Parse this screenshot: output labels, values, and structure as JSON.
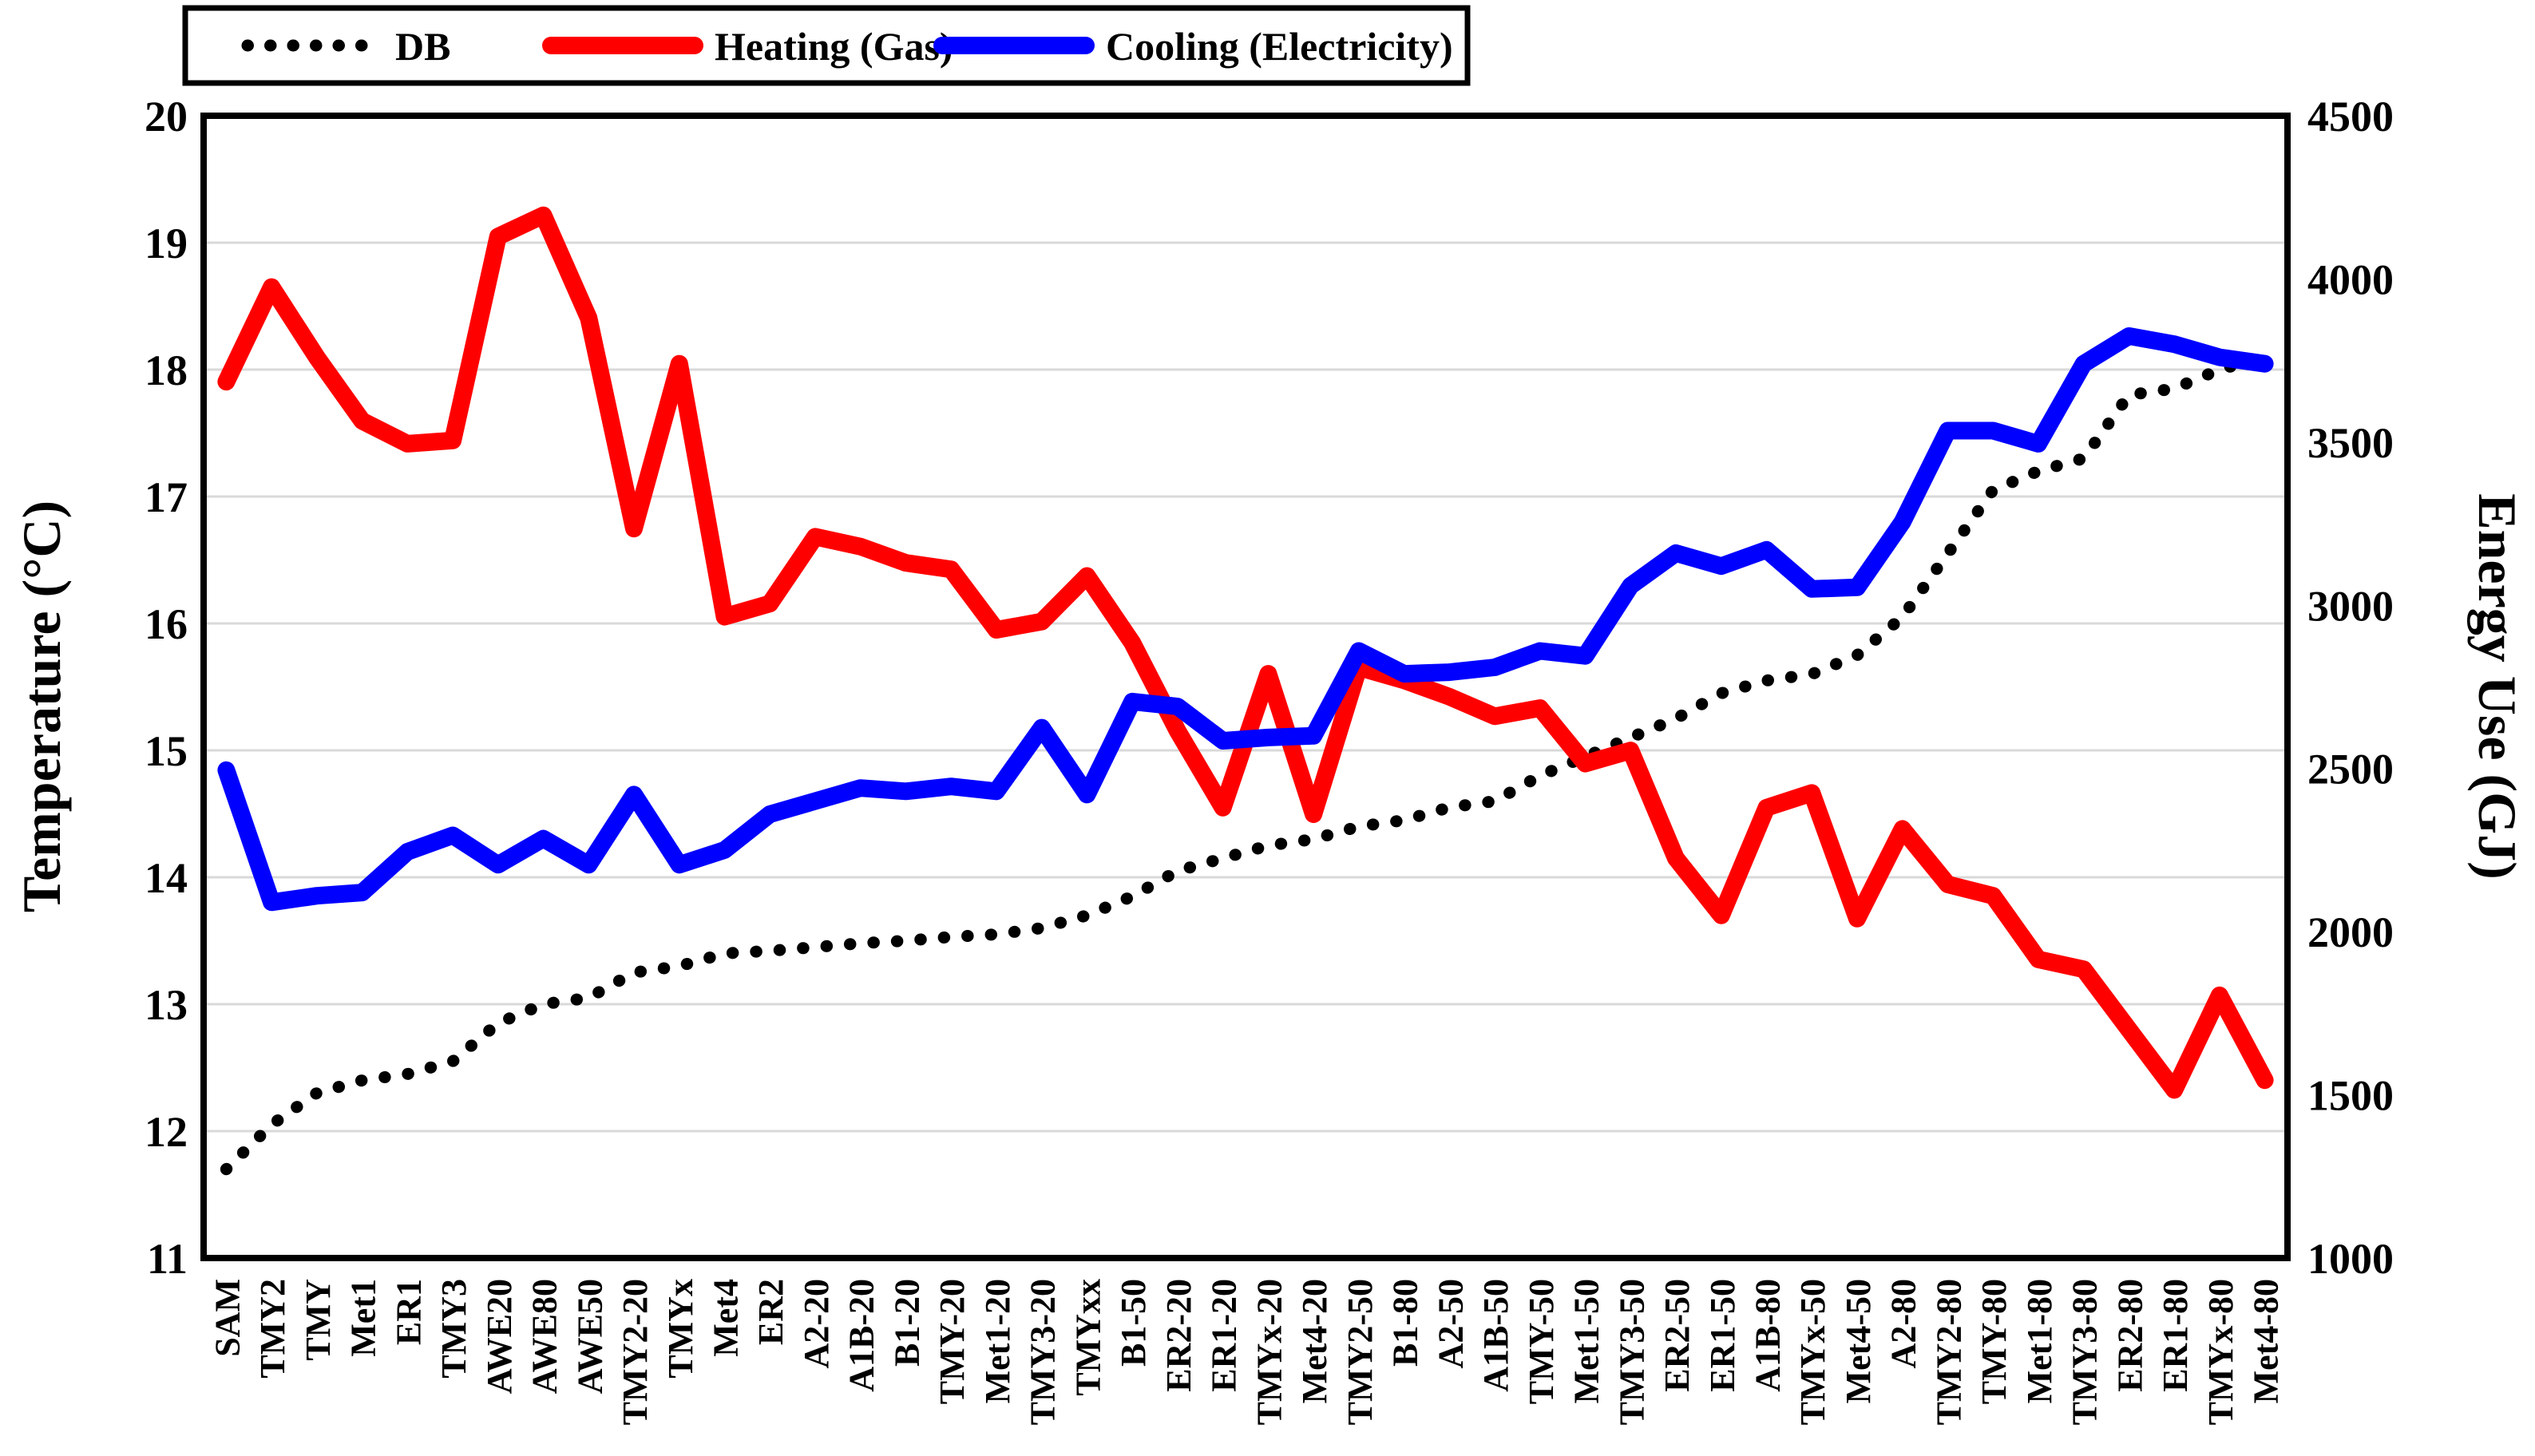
{
  "chart_data": {
    "type": "line",
    "title": "",
    "categories": [
      "SAM",
      "TMY2",
      "TMY",
      "Met1",
      "ER1",
      "TMY3",
      "AWE20",
      "AWE80",
      "AWE50",
      "TMY2-20",
      "TMYx",
      "Met4",
      "ER2",
      "A2-20",
      "A1B-20",
      "B1-20",
      "TMY-20",
      "Met1-20",
      "TMY3-20",
      "TMYxx",
      "B1-50",
      "ER2-20",
      "ER1-20",
      "TMYx-20",
      "Met4-20",
      "TMY2-50",
      "B1-80",
      "A2-50",
      "A1B-50",
      "TMY-50",
      "Met1-50",
      "TMY3-50",
      "ER2-50",
      "ER1-50",
      "A1B-80",
      "TMYx-50",
      "Met4-50",
      "A2-80",
      "TMY2-80",
      "TMY-80",
      "Met1-80",
      "TMY3-80",
      "ER2-80",
      "ER1-80",
      "TMYx-80",
      "Met4-80"
    ],
    "series": [
      {
        "name": "DB",
        "axis": "left",
        "unit": "°C",
        "color": "#000000",
        "style": "dotted",
        "values": [
          11.7,
          12.05,
          12.3,
          12.4,
          12.45,
          12.55,
          12.85,
          13.0,
          13.05,
          13.25,
          13.3,
          13.4,
          13.42,
          13.45,
          13.48,
          13.5,
          13.53,
          13.55,
          13.6,
          13.7,
          13.85,
          14.05,
          14.15,
          14.25,
          14.3,
          14.4,
          14.45,
          14.55,
          14.6,
          14.8,
          14.95,
          15.1,
          15.25,
          15.45,
          15.55,
          15.6,
          15.75,
          16.05,
          16.55,
          17.05,
          17.2,
          17.3,
          17.8,
          17.85,
          18.0,
          18.1
        ]
      },
      {
        "name": "Heating (Gas)",
        "axis": "right",
        "unit": "GJ",
        "color": "#ff0000",
        "style": "solid",
        "values": [
          3685,
          3975,
          3760,
          3565,
          3495,
          3505,
          4130,
          4195,
          3880,
          3235,
          3740,
          2965,
          3005,
          3210,
          3180,
          3130,
          3110,
          2925,
          2950,
          3090,
          2885,
          2615,
          2380,
          2790,
          2360,
          2810,
          2770,
          2720,
          2660,
          2685,
          2515,
          2555,
          2225,
          2050,
          2380,
          2425,
          2040,
          2315,
          2145,
          2110,
          1915,
          1885,
          1700,
          1515,
          1805,
          1545
        ]
      },
      {
        "name": "Cooling (Electricity)",
        "axis": "right",
        "unit": "GJ",
        "color": "#0000ff",
        "style": "solid",
        "values": [
          2495,
          2090,
          2110,
          2120,
          2245,
          2295,
          2205,
          2285,
          2205,
          2420,
          2205,
          2250,
          2360,
          2400,
          2440,
          2430,
          2445,
          2430,
          2625,
          2420,
          2705,
          2690,
          2585,
          2595,
          2600,
          2860,
          2790,
          2795,
          2810,
          2860,
          2845,
          3060,
          3160,
          3120,
          3170,
          3050,
          3055,
          3255,
          3535,
          3535,
          3495,
          3740,
          3825,
          3800,
          3760,
          3740
        ]
      }
    ],
    "left_axis": {
      "label": "Temperature (°C)",
      "min": 11,
      "max": 20,
      "ticks": [
        20,
        19,
        18,
        17,
        16,
        15,
        14,
        13,
        12,
        11
      ]
    },
    "right_axis": {
      "label": "Energy Use (GJ)",
      "min": 1000,
      "max": 4500,
      "ticks": [
        4500,
        4000,
        3500,
        3000,
        2500,
        2000,
        1500,
        1000
      ]
    },
    "grid": "horizontal",
    "grid_color": "#d9d9d9",
    "border_color": "#000000",
    "legend_position": "top-left"
  }
}
